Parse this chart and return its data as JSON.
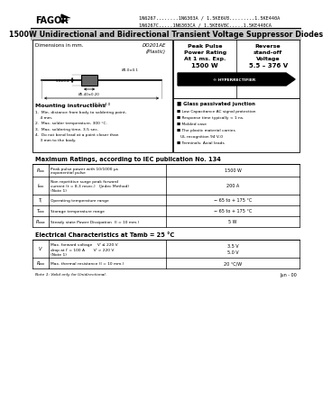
{
  "title_line1": "1N6267........1N6303A / 1.5KE6V8.........1.5KE440A",
  "title_line2": "1N6267C.....1N6303CA / 1.5KE6V8C.....1.5KE440CA",
  "main_title": "1500W Unidirectional and Bidirectional Transient Voltage Suppressor Diodes",
  "brand": "FAGOR",
  "package_line1": "DO201AE",
  "package_line2": "(Plastic)",
  "peak_pulse_line1": "Peak Pulse",
  "peak_pulse_line2": "Power Rating",
  "peak_pulse_line3": "At 1 ms. Exp.",
  "peak_pulse_line4": "1500 W",
  "reverse_line1": "Reverse",
  "reverse_line2": "stand-off",
  "reverse_line3": "Voltage",
  "reverse_line4": "5.5 – 376 V",
  "hyperrectifier": "HYPERRECTIFIER",
  "dim_label": "Dimensions in mm.",
  "dim_body": "70.0 ±4.0",
  "dim_height": "5.0±0.4",
  "dim_lead": "Ø1.0±0.1",
  "dim_width": "Ø5.40±0.20",
  "mounting_title": "Mounting instructions",
  "mounting_items": [
    "1.  Min. distance from body to soldering point,",
    "    4 mm.",
    "2.  Max. solder temperature, 300 °C.",
    "3.  Max. soldering time, 3.5 sec.",
    "4.  Do not bend lead at a point closer than",
    "    3 mm to the body."
  ],
  "features_title": "Glass passivated junction",
  "features": [
    "Low Capacitance AC signal protection",
    "Response time typically < 1 ns.",
    "Molded case",
    "The plastic material carries",
    "  UL recognition 94 V-0",
    "Terminals: Axial leads"
  ],
  "max_ratings_title": "Maximum Ratings, according to IEC publication No. 134",
  "max_ratings_rows": [
    [
      "Pₐₐₐ",
      "Peak pulse power with 10/1000 μs\nexponential pulse",
      "1500 W"
    ],
    [
      "Iₐₐₐ",
      "Non repetitive surge peak forward\ncurrent (t = 8.3 msec.)   (Jedec Method)\n(Note 1)",
      "200 A"
    ],
    [
      "Tⱼ",
      "Operating temperature range",
      "− 65 to + 175 °C"
    ],
    [
      "Tₐₐₐ",
      "Storage temperature range",
      "− 65 to + 175 °C"
    ],
    [
      "Pₐₐₐₐ",
      "Steady state Power Dissipation  (l = 10 mm.)",
      "5 W"
    ]
  ],
  "elec_title": "Electrical Characteristics at Tamb = 25 °C",
  "elec_rows": [
    [
      "Vⁱ",
      "Max. forward voltage    Vⁱ ≤ 220 V\ndrop at Iⁱ = 100 A       Vⁱ > 220 V\n(Note 1)",
      "3.5 V\n5.0 V"
    ],
    [
      "Rₐₐₐ",
      "Max. thermal resistance (l = 10 mm.)",
      "20 °C/W"
    ]
  ],
  "note": "Note 1: Valid only for Unidirectional.",
  "date": "Jun - 00",
  "bg_color": "#ffffff"
}
